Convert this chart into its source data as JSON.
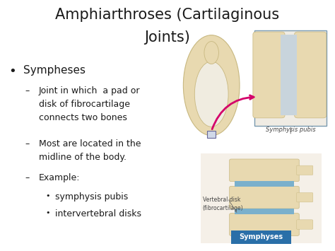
{
  "title_line1": "Amphiarthroses (Cartilaginous",
  "title_line2": "Joints)",
  "background_color": "#ffffff",
  "title_color": "#1a1a1a",
  "title_fontsize": 15,
  "bullet_color": "#1a1a1a",
  "bullet_main": "Sympheses",
  "bullet_main_fontsize": 11,
  "sub_bullet_fontsize": 9,
  "sub_sub_bullet_fontsize": 9,
  "sub_bullets": [
    "Joint in which  a pad or\ndisk of fibrocartilage\nconnects two bones",
    "Most are located in the\nmidline of the body.",
    "Example:"
  ],
  "sub_sub_bullets": [
    "symphysis pubis",
    "intervertebral disks"
  ],
  "label_symphysis": "Symphysis pubis",
  "label_vertebral": "Vertebral disk\n(fibrocartilage)",
  "label_bottom_box": "Symphyses",
  "bottom_box_color": "#2a6fa8",
  "bottom_box_text_color": "#ffffff",
  "arrow_color": "#d4006a",
  "bone_color": "#e8d9b0",
  "bone_edge_color": "#c8b880",
  "disk_color": "#7ab0cc",
  "zoom_box_edge": "#7a9ab0",
  "zoom_bg": "#e8d9b0",
  "label_color": "#444444"
}
